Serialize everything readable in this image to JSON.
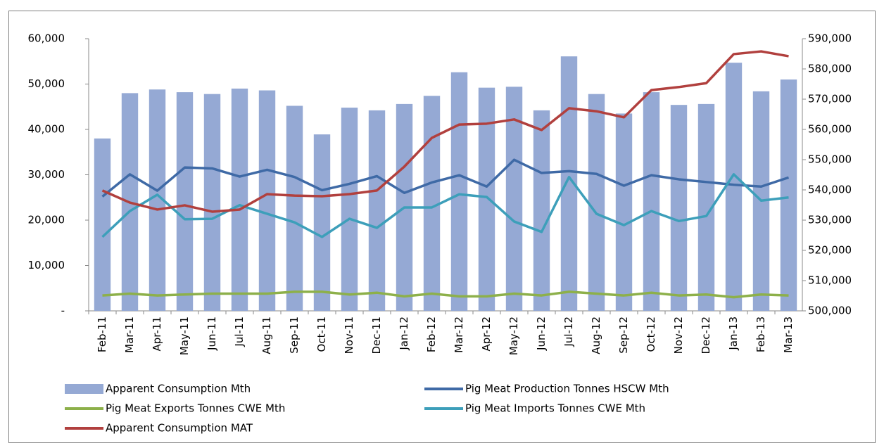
{
  "chart_data": {
    "type": "combo",
    "categories": [
      "Feb-11",
      "Mar-11",
      "Apr-11",
      "May-11",
      "Jun-11",
      "Jul-11",
      "Aug-11",
      "Sep-11",
      "Oct-11",
      "Nov-11",
      "Dec-11",
      "Jan-12",
      "Feb-12",
      "Mar-12",
      "Apr-12",
      "May-12",
      "Jun-12",
      "Jul-12",
      "Aug-12",
      "Sep-12",
      "Oct-12",
      "Nov-12",
      "Dec-12",
      "Jan-13",
      "Feb-13",
      "Mar-13"
    ],
    "series": [
      {
        "name": "Apparent Consumption Mth",
        "kind": "bar",
        "color": "#95a9d4",
        "values": [
          38000,
          48000,
          48800,
          48200,
          47800,
          49000,
          48600,
          45200,
          38900,
          44800,
          44200,
          45600,
          47400,
          52600,
          49200,
          49400,
          44200,
          56100,
          47800,
          43500,
          48200,
          45400,
          45600,
          54700,
          48400,
          51000
        ]
      },
      {
        "name": "Pig Meat Production Tonnes HSCW Mth",
        "kind": "line",
        "color": "#3f6aa6",
        "values": [
          25200,
          30100,
          26500,
          31600,
          31400,
          29600,
          31100,
          29500,
          26600,
          28000,
          29700,
          26000,
          28300,
          29900,
          27400,
          33300,
          30400,
          30800,
          30200,
          27600,
          29900,
          29000,
          28400,
          27800,
          27400,
          29400
        ]
      },
      {
        "name": "Pig Meat Exports Tonnes CWE Mth",
        "kind": "line",
        "color": "#8db04a",
        "values": [
          3400,
          3800,
          3400,
          3600,
          3800,
          3800,
          3800,
          4200,
          4200,
          3600,
          4000,
          3200,
          3800,
          3200,
          3200,
          3800,
          3400,
          4200,
          3800,
          3400,
          4000,
          3400,
          3600,
          3000,
          3600,
          3400
        ]
      },
      {
        "name": "Pig Meat Imports Tonnes CWE Mth",
        "kind": "line",
        "color": "#3d9fba",
        "values": [
          16300,
          22000,
          25600,
          20200,
          20300,
          23300,
          21400,
          19500,
          16300,
          20300,
          18300,
          22800,
          22800,
          25700,
          25100,
          19700,
          17400,
          29500,
          21400,
          18900,
          22000,
          19800,
          20900,
          30100,
          24300,
          25000
        ]
      },
      {
        "name": "Apparent Consumption MAT",
        "kind": "line",
        "axis": "y2",
        "color": "#b1403e",
        "values": [
          539800,
          535800,
          533500,
          534900,
          532800,
          533500,
          538600,
          538100,
          537900,
          538600,
          539800,
          547700,
          557200,
          561600,
          561900,
          563300,
          559800,
          567000,
          566000,
          564000,
          573000,
          574000,
          575300,
          584900,
          585800,
          584200
        ]
      }
    ],
    "ylim": [
      0,
      60000
    ],
    "yticks": [
      {
        "value": 0,
        "label": "-"
      },
      {
        "value": 10000,
        "label": "10,000"
      },
      {
        "value": 20000,
        "label": "20,000"
      },
      {
        "value": 30000,
        "label": "30,000"
      },
      {
        "value": 40000,
        "label": "40,000"
      },
      {
        "value": 50000,
        "label": "50,000"
      },
      {
        "value": 60000,
        "label": "60,000"
      }
    ],
    "y2lim": [
      500000,
      590000
    ],
    "y2ticks": [
      {
        "value": 500000,
        "label": "500,000"
      },
      {
        "value": 510000,
        "label": "510,000"
      },
      {
        "value": 520000,
        "label": "520,000"
      },
      {
        "value": 530000,
        "label": "530,000"
      },
      {
        "value": 540000,
        "label": "540,000"
      },
      {
        "value": 550000,
        "label": "550,000"
      },
      {
        "value": 560000,
        "label": "560,000"
      },
      {
        "value": 570000,
        "label": "570,000"
      },
      {
        "value": 580000,
        "label": "580,000"
      },
      {
        "value": 590000,
        "label": "590,000"
      }
    ],
    "legend": "bottom"
  }
}
